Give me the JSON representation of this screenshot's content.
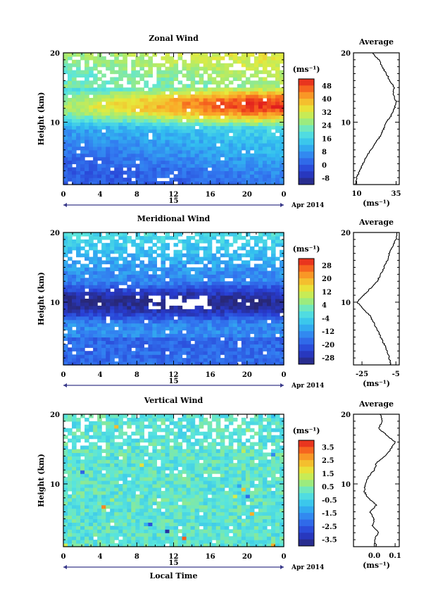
{
  "chart_data": [
    {
      "type": "heatmap",
      "title": "Zonal Wind",
      "ylabel": "Height (km)",
      "ylim": [
        1,
        20
      ],
      "y_ticks": [
        10,
        20
      ],
      "xlim": [
        0,
        24
      ],
      "x_ticks": [
        "0",
        "4",
        "8",
        "12",
        "16",
        "20",
        "0"
      ],
      "date_label": "15",
      "date_suffix": "Apr 2014",
      "colorbar": {
        "unit": "(ms⁻¹)",
        "ticks": [
          "48",
          "40",
          "32",
          "24",
          "16",
          "8",
          "0",
          "-8"
        ],
        "range": [
          -12,
          52
        ]
      },
      "field_description": {
        "jet_core": {
          "height_km": 12,
          "local_time_h": [
            17,
            24
          ],
          "value_ms": 50
        },
        "lower_trop": {
          "height_km": [
            1,
            8
          ],
          "value_ms": [
            -8,
            10
          ]
        },
        "upper_levels": {
          "height_km": [
            15,
            20
          ],
          "value_ms": [
            15,
            30
          ]
        }
      },
      "average_profile": {
        "title": "Average",
        "xlabel": "(ms⁻¹)",
        "x_ticks": [
          "10",
          "35"
        ],
        "xlim": [
          8,
          37
        ],
        "height_km": [
          1,
          2,
          3,
          4,
          5,
          6,
          7,
          8,
          9,
          10,
          11,
          12,
          13,
          14,
          15,
          16,
          17,
          18,
          19,
          20
        ],
        "values": [
          9,
          10,
          12,
          14,
          16,
          19,
          22,
          25,
          27,
          29,
          32,
          34,
          35,
          33,
          34,
          31,
          29,
          26,
          24,
          20
        ]
      }
    },
    {
      "type": "heatmap",
      "title": "Meridional Wind",
      "ylabel": "Height (km)",
      "ylim": [
        1,
        20
      ],
      "y_ticks": [
        10,
        20
      ],
      "xlim": [
        0,
        24
      ],
      "x_ticks": [
        "0",
        "4",
        "8",
        "12",
        "16",
        "20",
        "0"
      ],
      "date_label": "15",
      "date_suffix": "Apr 2014",
      "colorbar": {
        "unit": "(ms⁻¹)",
        "ticks": [
          "28",
          "20",
          "12",
          "4",
          "-4",
          "-12",
          "-20",
          "-28"
        ],
        "range": [
          -32,
          32
        ]
      },
      "field_description": {
        "core": {
          "height_km": 10,
          "value_ms": -30
        },
        "lower_trop": {
          "height_km": [
            1,
            6
          ],
          "value_ms": [
            -20,
            -10
          ]
        },
        "upper_levels": {
          "height_km": [
            15,
            20
          ],
          "value_ms": [
            -8,
            0
          ]
        }
      },
      "average_profile": {
        "title": "Average",
        "xlabel": "(ms⁻¹)",
        "x_ticks": [
          "-25",
          "-5"
        ],
        "xlim": [
          -30,
          -3
        ],
        "height_km": [
          1,
          2,
          3,
          4,
          5,
          6,
          7,
          8,
          9,
          10,
          11,
          12,
          13,
          14,
          15,
          16,
          17,
          18,
          19,
          20
        ],
        "values": [
          -8,
          -9,
          -10,
          -12,
          -14,
          -16,
          -18,
          -20,
          -24,
          -28,
          -24,
          -20,
          -16,
          -14,
          -12,
          -10,
          -9,
          -7,
          -5,
          -4
        ]
      }
    },
    {
      "type": "heatmap",
      "title": "Vertical Wind",
      "ylabel": "Height (km)",
      "xlabel": "Local Time",
      "ylim": [
        1,
        20
      ],
      "y_ticks": [
        10,
        20
      ],
      "xlim": [
        0,
        24
      ],
      "x_ticks": [
        "0",
        "4",
        "8",
        "12",
        "16",
        "20",
        "0"
      ],
      "date_label": "15",
      "date_suffix": "Apr 2014",
      "colorbar": {
        "unit": "(ms⁻¹)",
        "ticks": [
          "3.5",
          "2.5",
          "1.5",
          "0.5",
          "-0.5",
          "-1.5",
          "-2.5",
          "-3.5"
        ],
        "range": [
          -4,
          4
        ]
      },
      "field_description": {
        "background": {
          "value_ms": [
            -0.5,
            0.5
          ]
        }
      },
      "average_profile": {
        "title": "Average",
        "xlabel": "(ms⁻¹)",
        "x_ticks": [
          "0.0",
          "0.1"
        ],
        "xlim": [
          -0.1,
          0.12
        ],
        "height_km": [
          1,
          2,
          3,
          4,
          5,
          6,
          7,
          8,
          9,
          10,
          11,
          12,
          13,
          14,
          15,
          16,
          17,
          18,
          19,
          20
        ],
        "values": [
          0.01,
          0.0,
          0.02,
          -0.01,
          0.0,
          -0.02,
          0.01,
          -0.03,
          -0.05,
          -0.04,
          -0.03,
          0.0,
          0.01,
          0.05,
          0.08,
          0.1,
          0.06,
          0.02,
          0.04,
          0.03
        ]
      }
    }
  ]
}
